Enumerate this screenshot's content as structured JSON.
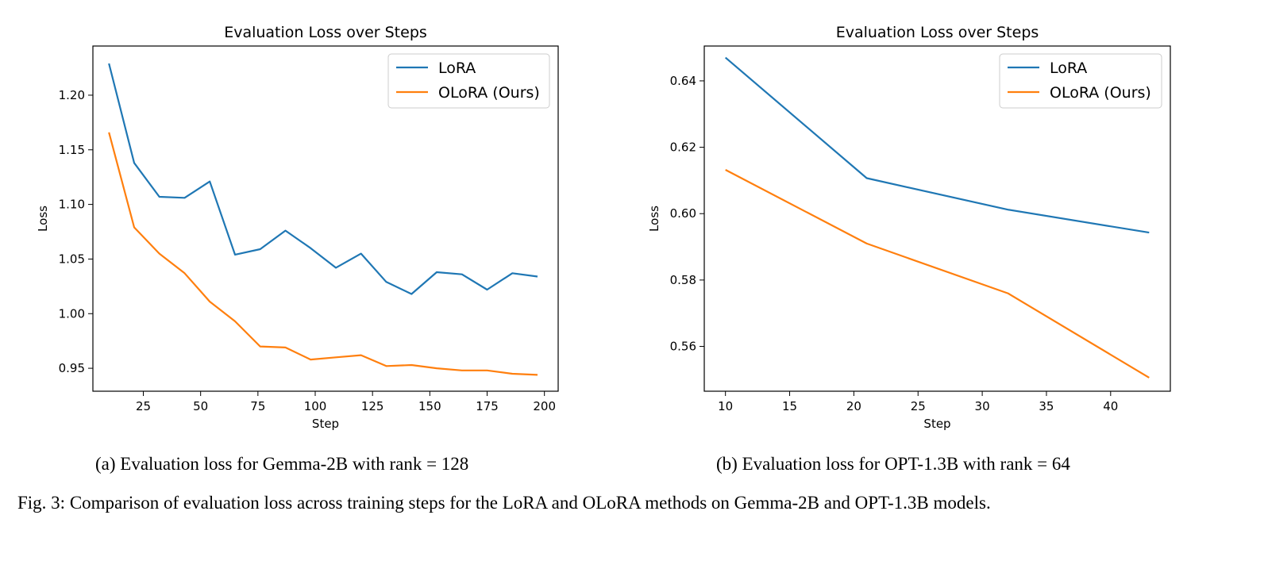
{
  "chart_data": [
    {
      "type": "line",
      "title": "Evaluation Loss over Steps",
      "xlabel": "Step",
      "ylabel": "Loss",
      "xlim": [
        3,
        206
      ],
      "ylim": [
        0.929,
        1.245
      ],
      "xticks": [
        25,
        50,
        75,
        100,
        125,
        150,
        175,
        200
      ],
      "yticks": [
        0.95,
        1.0,
        1.05,
        1.1,
        1.15,
        1.2
      ],
      "ytick_decimals": 2,
      "legend": "top-right",
      "grid": false,
      "x": [
        10,
        21,
        32,
        43,
        54,
        65,
        76,
        87,
        98,
        109,
        120,
        131,
        142,
        153,
        164,
        175,
        186,
        197
      ],
      "series": [
        {
          "name": "LoRA",
          "color": "#1f77b4",
          "values": [
            1.229,
            1.138,
            1.107,
            1.106,
            1.121,
            1.054,
            1.059,
            1.076,
            1.06,
            1.042,
            1.055,
            1.029,
            1.018,
            1.038,
            1.036,
            1.022,
            1.037,
            1.034
          ]
        },
        {
          "name": "OLoRA (Ours)",
          "color": "#ff7f0e",
          "values": [
            1.166,
            1.079,
            1.055,
            1.037,
            1.011,
            0.993,
            0.97,
            0.969,
            0.958,
            0.96,
            0.962,
            0.952,
            0.953,
            0.95,
            0.948,
            0.948,
            0.945,
            0.944
          ]
        }
      ]
    },
    {
      "type": "line",
      "title": "Evaluation Loss over Steps",
      "xlabel": "Step",
      "ylabel": "Loss",
      "xlim": [
        8.35,
        44.65
      ],
      "ylim": [
        0.5465,
        0.6505
      ],
      "xticks": [
        10,
        15,
        20,
        25,
        30,
        35,
        40
      ],
      "yticks": [
        0.56,
        0.58,
        0.6,
        0.62,
        0.64
      ],
      "ytick_decimals": 2,
      "legend": "top-right",
      "grid": false,
      "x": [
        10,
        21,
        32,
        43
      ],
      "series": [
        {
          "name": "LoRA",
          "color": "#1f77b4",
          "values": [
            0.647,
            0.6107,
            0.6012,
            0.5943
          ]
        },
        {
          "name": "OLoRA (Ours)",
          "color": "#ff7f0e",
          "values": [
            0.6132,
            0.591,
            0.576,
            0.5506
          ]
        }
      ]
    }
  ],
  "captions": {
    "a": "(a) Evaluation loss for Gemma-2B with rank = 128",
    "b": "(b) Evaluation loss for OPT-1.3B with rank = 64"
  },
  "figure_caption": "Fig. 3: Comparison of evaluation loss across training steps for the LoRA and OLoRA methods on Gemma-2B and OPT-1.3B models."
}
